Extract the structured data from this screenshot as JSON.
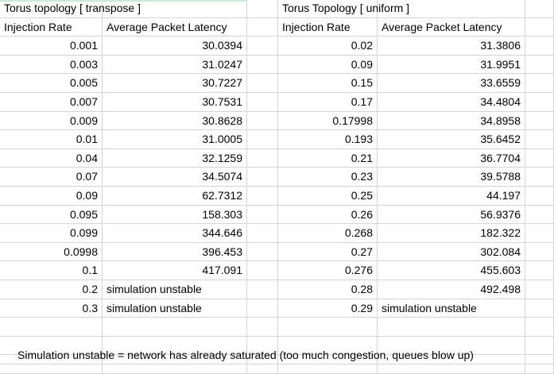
{
  "left_table": {
    "title": "Torus topology [ transpose ]",
    "col1": "Injection Rate",
    "col2": "Average Packet Latency",
    "rows": [
      [
        "0.001",
        "30.0394"
      ],
      [
        "0.003",
        "31.0247"
      ],
      [
        "0.005",
        "30.7227"
      ],
      [
        "0.007",
        "30.7531"
      ],
      [
        "0.009",
        "30.8628"
      ],
      [
        "0.01",
        "31.0005"
      ],
      [
        "0.04",
        "32.1259"
      ],
      [
        "0.07",
        "34.5074"
      ],
      [
        "0.09",
        "62.7312"
      ],
      [
        "0.095",
        "158.303"
      ],
      [
        "0.099",
        "344.646"
      ],
      [
        "0.0998",
        "396.453"
      ],
      [
        "0.1",
        "417.091"
      ],
      [
        "0.2",
        "simulation unstable"
      ],
      [
        "0.3",
        "simulation unstable"
      ]
    ]
  },
  "right_table": {
    "title": "Torus Topology [ uniform ]",
    "col1": "Injection Rate",
    "col2": "Average Packet Latency",
    "rows": [
      [
        "0.02",
        "31.3806"
      ],
      [
        "0.09",
        "31.9951"
      ],
      [
        "0.15",
        "33.6559"
      ],
      [
        "0.17",
        "34.4804"
      ],
      [
        "0.17998",
        "34.8958"
      ],
      [
        "0.193",
        "35.6452"
      ],
      [
        "0.21",
        "36.7704"
      ],
      [
        "0.23",
        "39.5788"
      ],
      [
        "0.25",
        "44.197"
      ],
      [
        "0.26",
        "56.9376"
      ],
      [
        "0.268",
        "182.322"
      ],
      [
        "0.27",
        "302.084"
      ],
      [
        "0.276",
        "455.603"
      ],
      [
        "0.28",
        "492.498"
      ],
      [
        "0.29",
        "simulation unstable"
      ]
    ]
  },
  "note": "Simulation unstable = network has already saturated (too much congestion, queues blow up)"
}
